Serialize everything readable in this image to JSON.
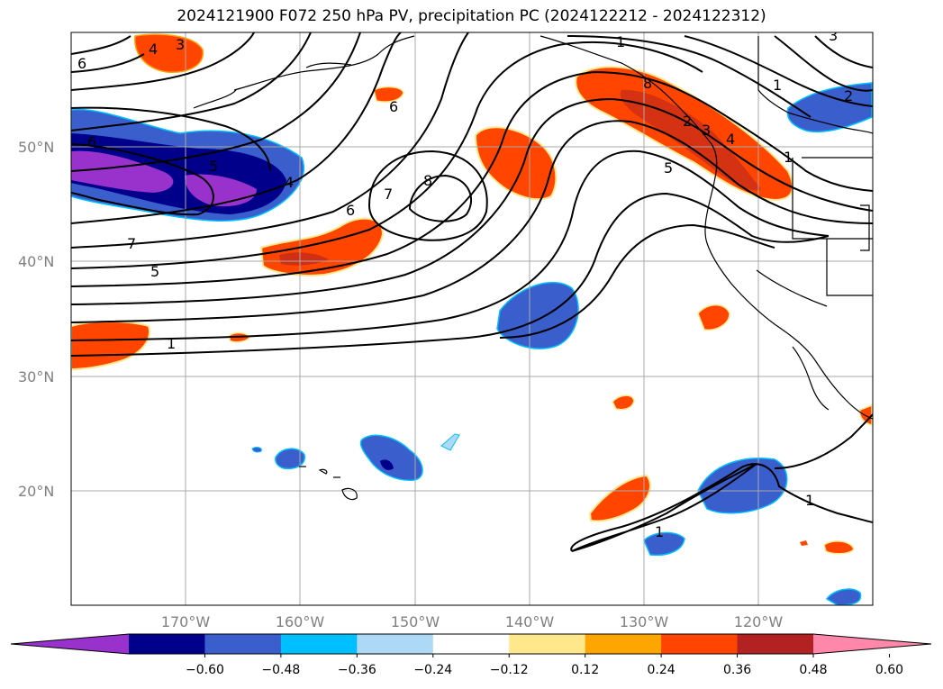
{
  "title": "2024121900 F072 250 hPa PV, precipitation PC (2024122212 - 2024122312)",
  "lat_labels": [
    "50°N",
    "40°N",
    "30°N",
    "20°N"
  ],
  "lon_labels": [
    "170°W",
    "160°W",
    "150°W",
    "140°W",
    "130°W",
    "120°W"
  ],
  "contour_labels": [
    "3",
    "4",
    "6",
    "6",
    "5",
    "4",
    "6",
    "7",
    "5",
    "1",
    "6",
    "7",
    "8",
    "1",
    "8",
    "2",
    "3",
    "4",
    "5",
    "1",
    "1",
    "1",
    "1",
    "2",
    "3"
  ],
  "colorbar": {
    "ticks": [
      "−0.60",
      "−0.48",
      "−0.36",
      "−0.24",
      "−0.12",
      "0.12",
      "0.24",
      "0.36",
      "0.48",
      "0.60"
    ],
    "colors": [
      "#9932cc",
      "#00008b",
      "#3a5fcd",
      "#00bfff",
      "#add8f6",
      "#ffffff",
      "#ffe88c",
      "#ffa500",
      "#ff4500",
      "#b22222",
      "#ff88aa"
    ]
  }
}
